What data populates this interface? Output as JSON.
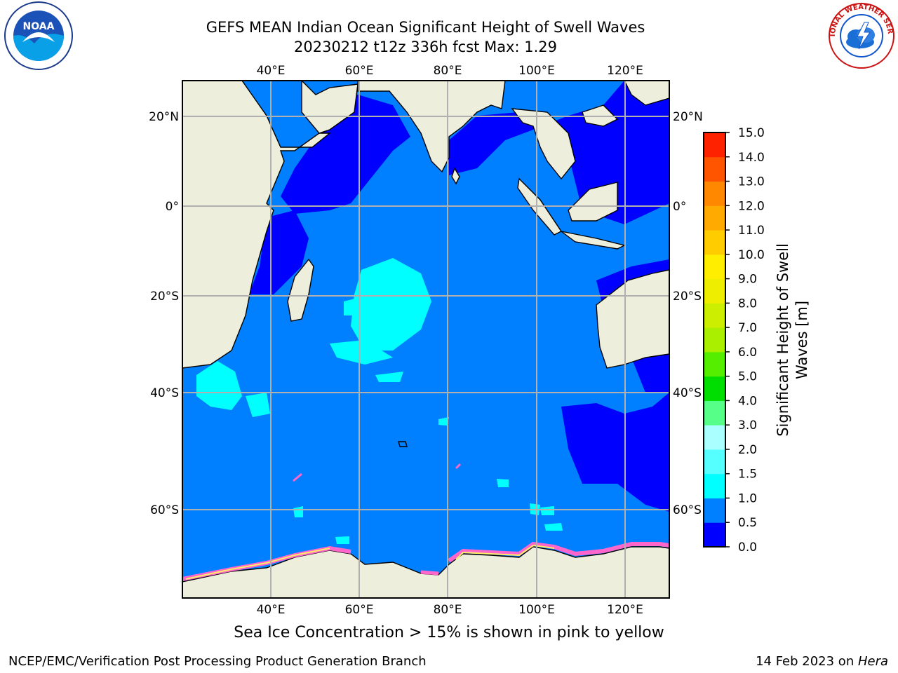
{
  "title": {
    "line1": "GEFS MEAN Indian Ocean Significant Height of Swell Waves",
    "line2": "20230212 t12z 336h fcst   Max: 1.29"
  },
  "caption": "Sea Ice Concentration > 15% is shown in pink to yellow",
  "footer": {
    "credit": "NCEP/EMC/Verification Post Processing Product Generation Branch",
    "date_prefix": "14 Feb 2023 on ",
    "date_host": "Hera"
  },
  "logos": {
    "left": "NOAA",
    "right": "NATIONAL WEATHER SERVICE"
  },
  "map": {
    "lon_range": [
      20,
      130
    ],
    "lat_range": [
      -70,
      28
    ],
    "lon_ticks": [
      "40°E",
      "60°E",
      "80°E",
      "100°E",
      "120°E"
    ],
    "lat_ticks": [
      "20°N",
      "0°",
      "20°S",
      "40°S",
      "60°S"
    ],
    "grid": true,
    "colors": {
      "ocean": "#0080ff",
      "low_swell": "#0000ff",
      "mid_swell": "#00ffff",
      "land": "#eeeedc",
      "ice_pink": "#ff66cc",
      "ice_yellow": "#ffee66"
    }
  },
  "colorbar": {
    "label_line1": "Significant Height of Swell",
    "label_line2": "Waves [m]",
    "ticks": [
      "0.0",
      "0.5",
      "1.0",
      "1.5",
      "2.0",
      "3.0",
      "4.0",
      "5.0",
      "6.0",
      "7.0",
      "8.0",
      "9.0",
      "10.0",
      "11.0",
      "12.0",
      "13.0",
      "14.0",
      "15.0"
    ],
    "colors": [
      "#0000ff",
      "#0080ff",
      "#00ffff",
      "#55ffff",
      "#aaffff",
      "#55ff88",
      "#00dd00",
      "#55ee00",
      "#aaee00",
      "#ccee00",
      "#eeee00",
      "#ffee00",
      "#ffcc00",
      "#ffaa00",
      "#ff8800",
      "#ff5500",
      "#ff2200"
    ]
  }
}
